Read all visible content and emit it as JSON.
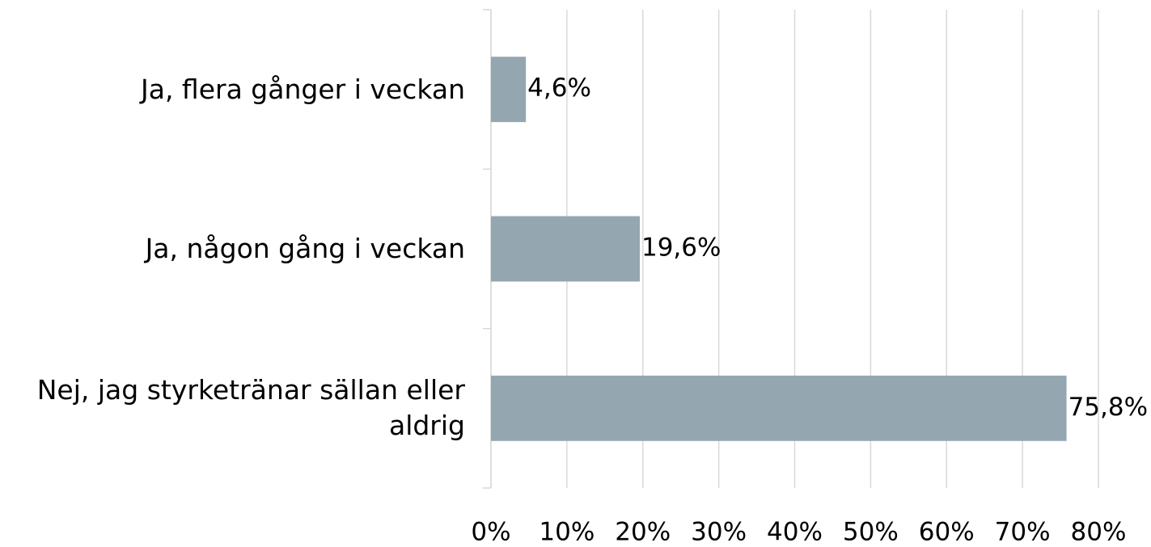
{
  "chart_data": {
    "type": "bar",
    "orientation": "horizontal",
    "categories": [
      "Ja, flera gånger i veckan",
      "Ja, någon gång i veckan",
      "Nej, jag styrketränar sällan eller aldrig"
    ],
    "values": [
      4.6,
      19.6,
      75.8
    ],
    "value_labels": [
      "4,6%",
      "19,6%",
      "75,8%"
    ],
    "color": "#94a7b1",
    "xlim": [
      0,
      80
    ],
    "xticks": [
      {
        "value": 0,
        "label": "0%"
      },
      {
        "value": 10,
        "label": "10%"
      },
      {
        "value": 20,
        "label": "20%"
      },
      {
        "value": 30,
        "label": "30%"
      },
      {
        "value": 40,
        "label": "40%"
      },
      {
        "value": 50,
        "label": "50%"
      },
      {
        "value": 60,
        "label": "60%"
      },
      {
        "value": 70,
        "label": "70%"
      },
      {
        "value": 80,
        "label": "80%"
      }
    ],
    "grid": true
  }
}
